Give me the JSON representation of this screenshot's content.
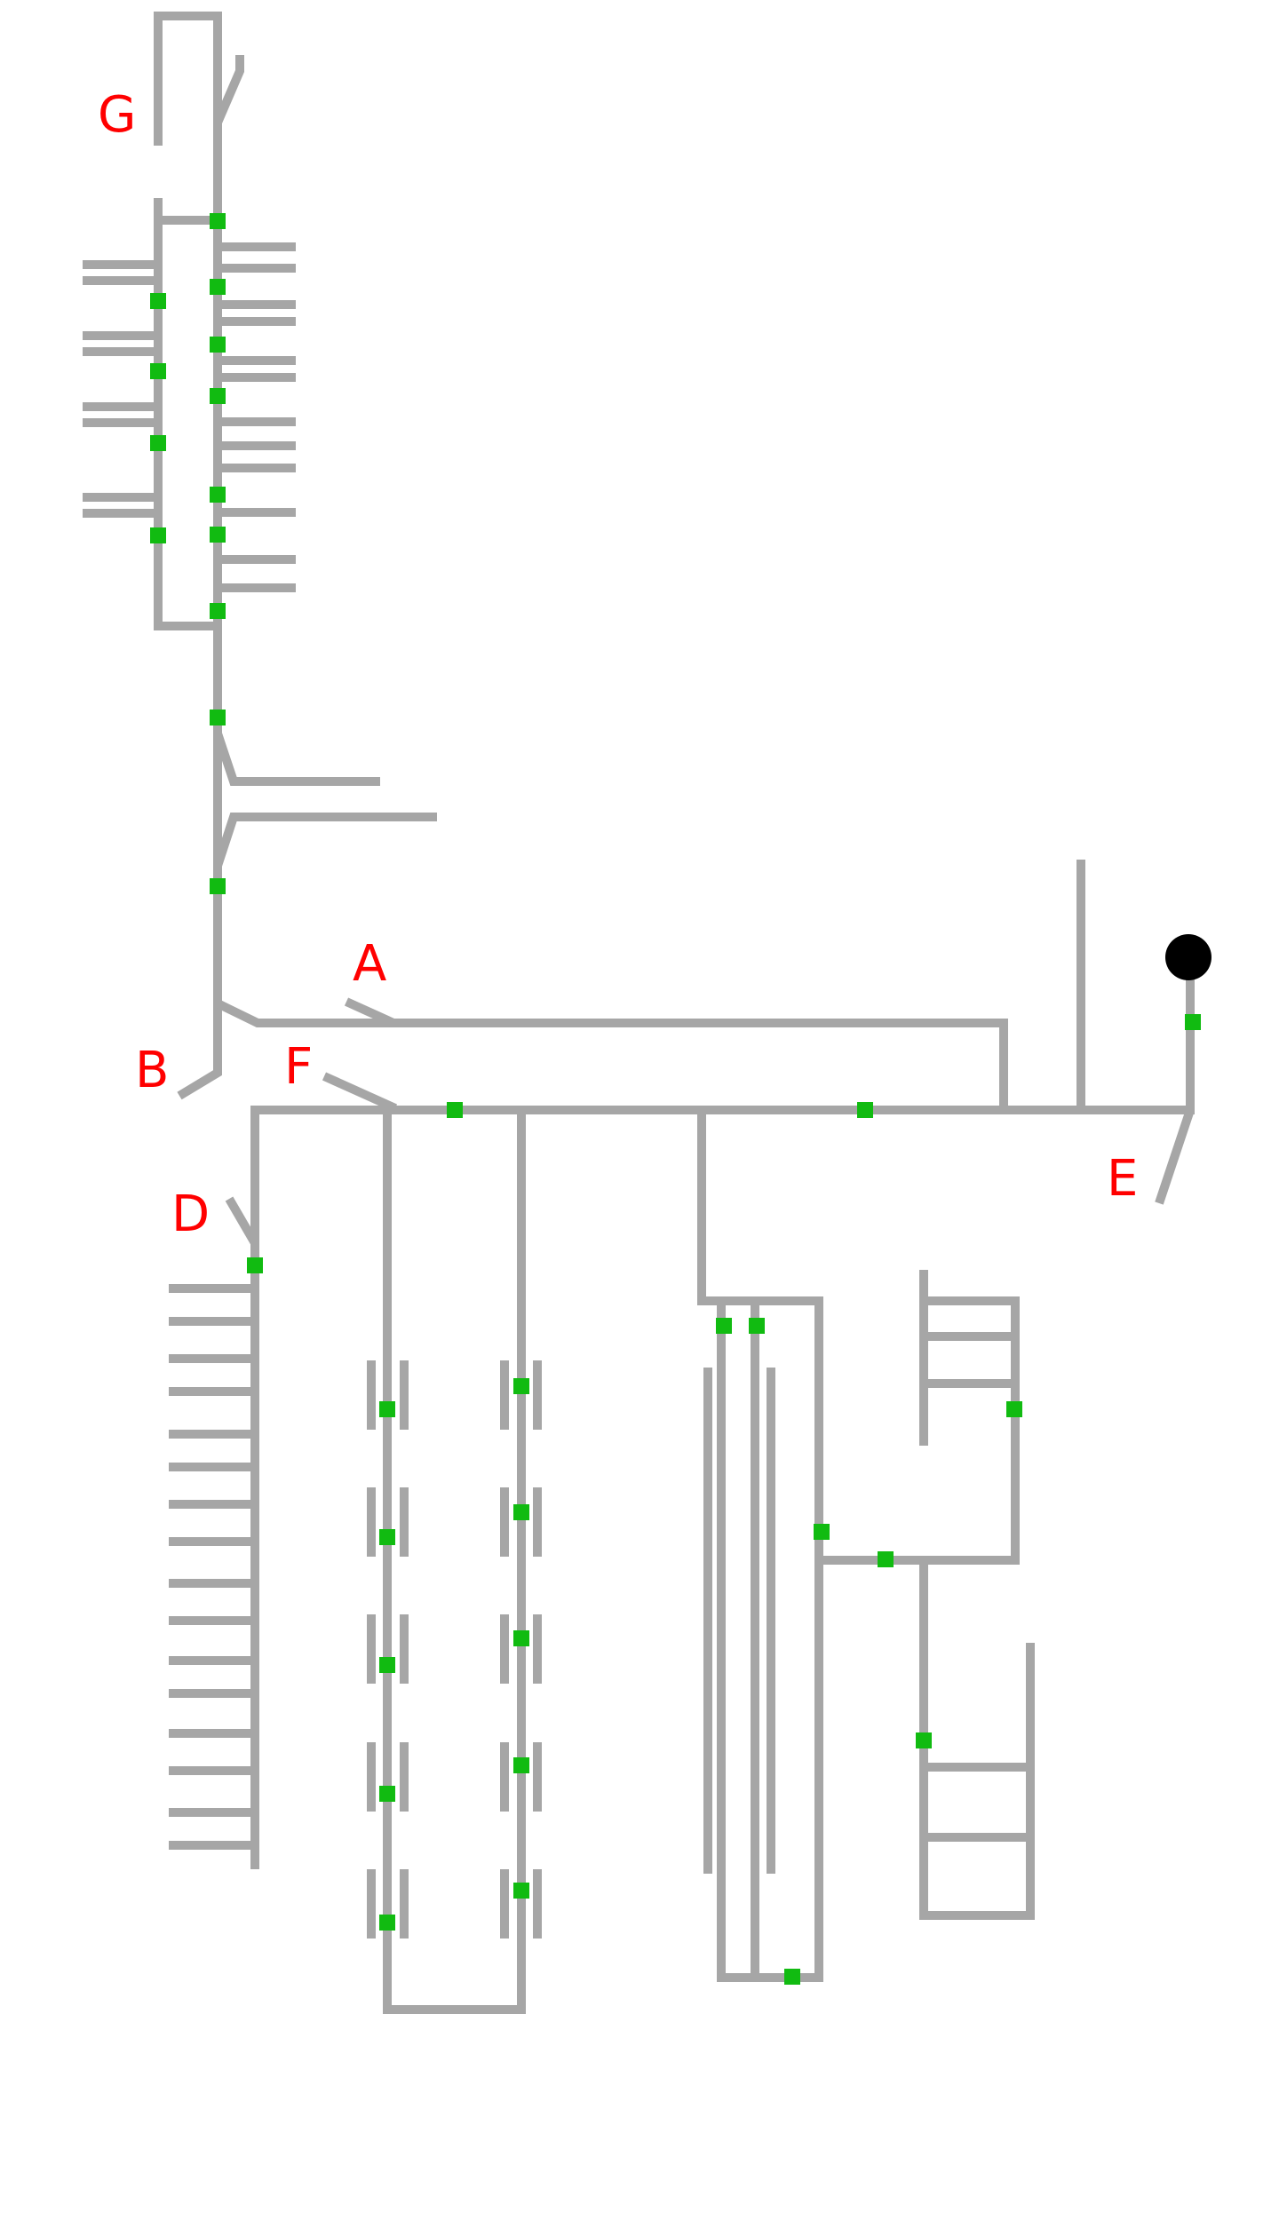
{
  "diagram": {
    "labels": {
      "A": "A",
      "B": "B",
      "D": "D",
      "E": "E",
      "F": "F",
      "G": "G"
    },
    "colors": {
      "pipe": "#a6a6a6",
      "node": "#11bb11",
      "terminal": "#000000",
      "label": "#ff0000",
      "background": "#ffffff"
    }
  }
}
